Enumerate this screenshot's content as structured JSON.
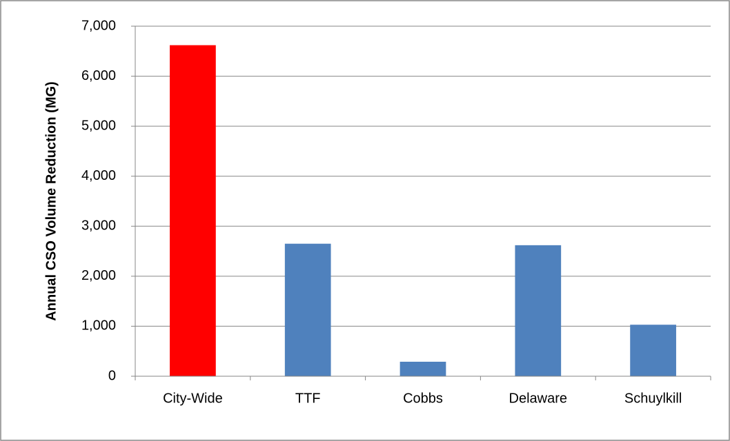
{
  "chart_data": {
    "type": "bar",
    "y_label": "Annual CSO Volume Reduction (MG)",
    "categories": [
      "City-Wide",
      "TTF",
      "Cobbs",
      "Delaware",
      "Schuylkill"
    ],
    "values": [
      6620,
      2650,
      290,
      2620,
      1030
    ],
    "colors": [
      "#ff0000",
      "#4f81bd",
      "#4f81bd",
      "#4f81bd",
      "#4f81bd"
    ],
    "ylim": [
      0,
      7000
    ],
    "yticks": [
      0,
      {
        "value": 1000,
        "label": "1,000"
      },
      {
        "value": 2000,
        "label": "2,000"
      },
      {
        "value": 3000,
        "label": "3,000"
      },
      {
        "value": 4000,
        "label": "4,000"
      },
      {
        "value": 5000,
        "label": "5,000"
      },
      {
        "value": 6000,
        "label": "6,000"
      },
      {
        "value": 7000,
        "label": "7,000"
      }
    ],
    "grid": true
  }
}
